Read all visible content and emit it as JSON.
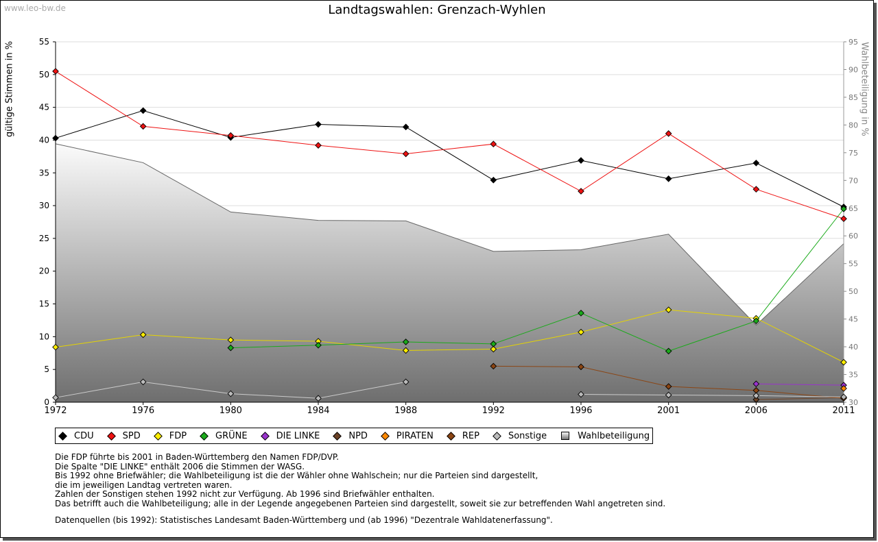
{
  "header": {
    "watermark": "www.leo-bw.de",
    "title": "Landtagswahlen: Grenzach-Wyhlen"
  },
  "chart_data": {
    "type": "line",
    "title": "Landtagswahlen: Grenzach-Wyhlen",
    "ylabel": "gültige Stimmen in %",
    "y2label": "Wahlbeteiligung in %",
    "xlabel": "",
    "ylim": [
      0,
      55
    ],
    "y2lim": [
      30,
      95
    ],
    "yticks": [
      0,
      5,
      10,
      15,
      20,
      25,
      30,
      35,
      40,
      45,
      50,
      55
    ],
    "y2ticks": [
      30,
      35,
      40,
      45,
      50,
      55,
      60,
      65,
      70,
      75,
      80,
      85,
      90,
      95
    ],
    "categories": [
      "1972",
      "1976",
      "1980",
      "1984",
      "1988",
      "1992",
      "1996",
      "2001",
      "2006",
      "2011"
    ],
    "grid": true,
    "legend_position": "bottom",
    "series": [
      {
        "name": "CDU",
        "color": "#000000",
        "values": [
          40.3,
          44.5,
          40.4,
          42.4,
          42.0,
          33.9,
          36.9,
          34.1,
          36.5,
          29.8
        ]
      },
      {
        "name": "SPD",
        "color": "#ee1111",
        "values": [
          50.5,
          42.1,
          40.7,
          39.2,
          37.9,
          39.4,
          32.2,
          41.0,
          32.5,
          28.0
        ]
      },
      {
        "name": "FDP",
        "color": "#ffee00",
        "values": [
          8.4,
          10.3,
          9.5,
          9.3,
          7.9,
          8.1,
          10.7,
          14.1,
          12.8,
          6.1
        ]
      },
      {
        "name": "GRÜNE",
        "color": "#1aaa1a",
        "values": [
          null,
          null,
          8.3,
          8.7,
          9.2,
          8.9,
          13.6,
          7.8,
          12.4,
          29.5
        ]
      },
      {
        "name": "DIE LINKE",
        "color": "#9933cc",
        "values": [
          null,
          null,
          null,
          null,
          null,
          null,
          null,
          null,
          2.8,
          2.6
        ]
      },
      {
        "name": "NPD",
        "color": "#6b4226",
        "values": [
          null,
          null,
          null,
          null,
          null,
          null,
          null,
          null,
          0.4,
          0.7
        ]
      },
      {
        "name": "PIRATEN",
        "color": "#ff8800",
        "values": [
          null,
          null,
          null,
          null,
          null,
          null,
          null,
          null,
          null,
          2.1
        ]
      },
      {
        "name": "REP",
        "color": "#8b4513",
        "values": [
          null,
          null,
          null,
          null,
          null,
          5.5,
          5.4,
          2.4,
          1.8,
          0.6
        ]
      },
      {
        "name": "Sonstige",
        "color": "#bbbbbb",
        "values": [
          0.7,
          3.1,
          1.3,
          0.6,
          3.1,
          null,
          1.2,
          1.1,
          1.0,
          0.8
        ]
      }
    ],
    "turnout": {
      "name": "Wahlbeteiligung",
      "axis": "right",
      "values": [
        76.6,
        73.2,
        64.3,
        62.8,
        62.7,
        57.2,
        57.5,
        60.3,
        43.9,
        58.6
      ]
    }
  },
  "legend": [
    {
      "name": "CDU",
      "color": "#000000"
    },
    {
      "name": "SPD",
      "color": "#ee1111"
    },
    {
      "name": "FDP",
      "color": "#ffee00"
    },
    {
      "name": "GRÜNE",
      "color": "#1aaa1a"
    },
    {
      "name": "DIE LINKE",
      "color": "#9933cc"
    },
    {
      "name": "NPD",
      "color": "#6b4226"
    },
    {
      "name": "PIRATEN",
      "color": "#ff8800"
    },
    {
      "name": "REP",
      "color": "#8b4513"
    },
    {
      "name": "Sonstige",
      "color": "#bbbbbb"
    },
    {
      "name": "Wahlbeteiligung",
      "color": "#999999"
    }
  ],
  "notes": [
    "Die FDP führte bis 2001 in Baden-Württemberg den Namen FDP/DVP.",
    "Die Spalte \"DIE LINKE\" enthält 2006 die Stimmen der WASG.",
    "Bis 1992 ohne Briefwähler; die Wahlbeteiligung ist die der Wähler ohne Wahlschein; nur die Parteien sind dargestellt,",
    "die im jeweiligen Landtag vertreten waren.",
    "Zahlen der Sonstigen stehen 1992 nicht zur Verfügung. Ab 1996 sind Briefwähler enthalten.",
    "Das betrifft auch die Wahlbeteiligung; alle in der Legende angegebenen Parteien sind dargestellt, soweit sie zur betreffenden Wahl angetreten sind."
  ],
  "sources": "Datenquellen (bis 1992): Statistisches Landesamt Baden-Württemberg und (ab 1996) \"Dezentrale Wahldatenerfassung\"."
}
